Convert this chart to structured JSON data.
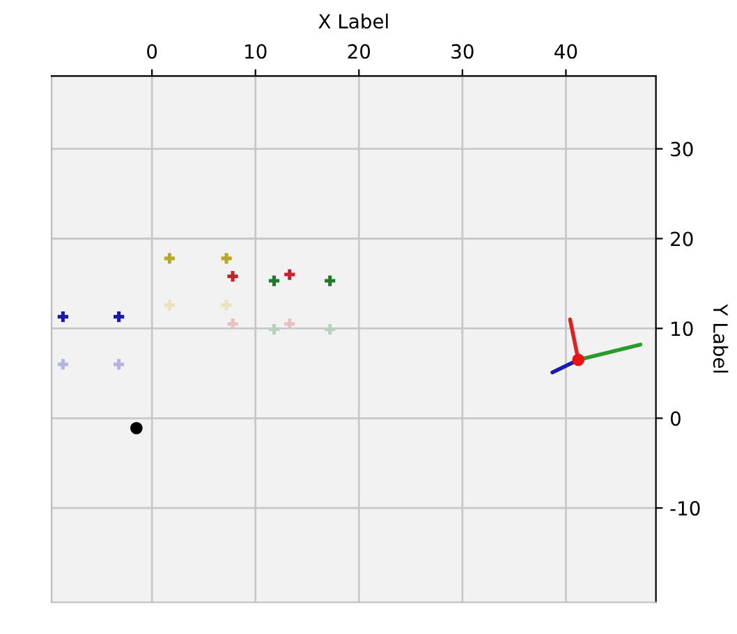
{
  "chart_data": {
    "type": "scatter",
    "xlabel": "X Label",
    "ylabel": "Y Label",
    "xlim": [
      -9.7,
      48.7
    ],
    "ylim": [
      -20.5,
      38.1
    ],
    "xticks": [
      0,
      10,
      20,
      30,
      40
    ],
    "yticks": [
      -10,
      0,
      10,
      20,
      30
    ],
    "grid": true,
    "series": [
      {
        "color": "#b8a82a",
        "marker": "cross",
        "x": [
          1.7,
          7.2
        ],
        "values": [
          17.8,
          17.8
        ]
      },
      {
        "color": "#e9e2bd",
        "marker": "cross",
        "x": [
          1.7,
          7.2
        ],
        "values": [
          12.6,
          12.6
        ]
      },
      {
        "color": "#cc1f2a",
        "marker": "cross",
        "x": [
          7.8,
          13.3
        ],
        "values": [
          15.8,
          16.0
        ]
      },
      {
        "color": "#e8c0c2",
        "marker": "cross",
        "x": [
          7.8,
          13.3
        ],
        "values": [
          10.5,
          10.5
        ]
      },
      {
        "color": "#1f7a2a",
        "marker": "cross",
        "x": [
          11.8,
          17.2
        ],
        "values": [
          15.3,
          15.3
        ]
      },
      {
        "color": "#b9d2bb",
        "marker": "cross",
        "x": [
          11.8,
          17.2
        ],
        "values": [
          9.9,
          9.9
        ]
      },
      {
        "color": "#1a1aa8",
        "marker": "cross",
        "x": [
          -8.6,
          -3.2
        ],
        "values": [
          11.3,
          11.3
        ]
      },
      {
        "color": "#b4b4de",
        "marker": "cross",
        "x": [
          -8.6,
          -3.2
        ],
        "values": [
          6.0,
          6.0
        ]
      },
      {
        "color": "#000000",
        "marker": "circle",
        "x": [
          -1.5
        ],
        "values": [
          -1.1
        ]
      },
      {
        "type": "line",
        "color": "#1a1ab0",
        "marker": "none",
        "x": [
          41.2,
          38.7
        ],
        "values": [
          6.5,
          5.1
        ]
      },
      {
        "type": "line",
        "color": "#2a9a2a",
        "marker": "none",
        "x": [
          41.2,
          47.2
        ],
        "values": [
          6.5,
          8.2
        ]
      },
      {
        "type": "line",
        "color": "#dd2222",
        "marker": "none",
        "x": [
          41.2,
          40.4
        ],
        "values": [
          6.5,
          11.0
        ]
      },
      {
        "color": "#ee1111",
        "marker": "circle",
        "x": [
          41.2
        ],
        "values": [
          6.5
        ]
      }
    ]
  }
}
